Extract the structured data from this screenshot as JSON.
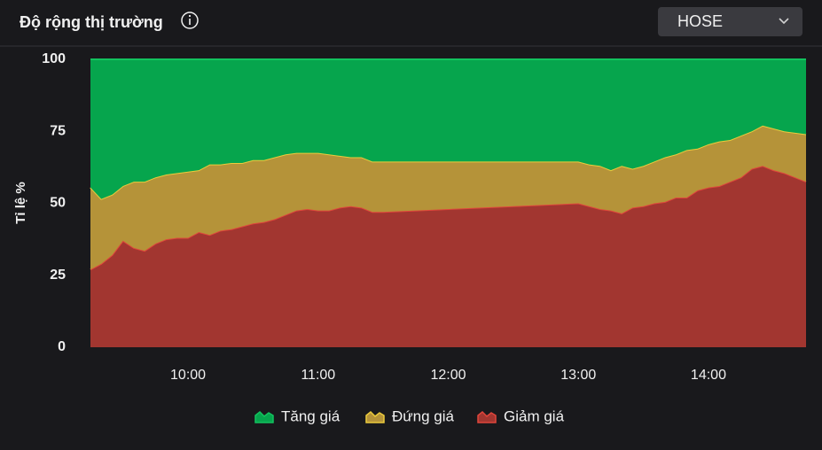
{
  "selector": {
    "value": "HOSE"
  },
  "chart_data": {
    "type": "stacked-area",
    "title": "Độ rộng thị trường",
    "ylabel": "Tỉ lệ %",
    "x": [
      "09:15",
      "09:20",
      "09:25",
      "09:30",
      "09:35",
      "09:40",
      "09:45",
      "09:50",
      "09:55",
      "10:00",
      "10:05",
      "10:10",
      "10:15",
      "10:20",
      "10:25",
      "10:30",
      "10:35",
      "10:40",
      "10:45",
      "10:50",
      "10:55",
      "11:00",
      "11:05",
      "11:10",
      "11:15",
      "11:20",
      "11:25",
      "11:30",
      "13:00",
      "13:05",
      "13:10",
      "13:15",
      "13:20",
      "13:25",
      "13:30",
      "13:35",
      "13:40",
      "13:45",
      "13:50",
      "13:55",
      "14:00",
      "14:05",
      "14:10",
      "14:15",
      "14:20",
      "14:25",
      "14:30",
      "14:35",
      "14:40",
      "14:45"
    ],
    "xlim": [
      "09:15",
      "14:45"
    ],
    "xticks": [
      "10:00",
      "11:00",
      "12:00",
      "13:00",
      "14:00"
    ],
    "ylim": [
      0,
      100
    ],
    "yticks": [
      0,
      25,
      50,
      75,
      100
    ],
    "grid": false,
    "series": [
      {
        "name": "Tăng giá",
        "color": "#06a54d",
        "line_color": "#12c35e",
        "values": [
          44.5,
          48.5,
          47,
          44,
          42.5,
          42.5,
          41,
          40,
          39.5,
          39,
          38.5,
          36.5,
          36.5,
          36,
          36,
          35,
          35,
          34,
          33,
          32.5,
          32.5,
          32.5,
          33,
          33.5,
          34,
          34,
          35.5,
          35.5,
          35.5,
          36.5,
          37,
          38.5,
          37,
          38,
          37,
          35.5,
          34,
          33,
          31.5,
          31,
          29.5,
          28.5,
          28,
          26.5,
          25,
          23,
          24,
          25,
          25.5,
          26
        ]
      },
      {
        "name": "Đứng giá",
        "color": "#b59339",
        "line_color": "#eccb3c",
        "values": [
          28.5,
          22.5,
          21,
          19,
          23,
          24,
          23,
          22.5,
          22.5,
          23,
          21.5,
          24.5,
          23,
          23,
          22,
          22,
          21.5,
          21.5,
          21,
          20,
          19.5,
          20,
          19.5,
          18,
          17,
          17.5,
          17.5,
          17.5,
          14.5,
          14.5,
          15,
          14,
          16.5,
          13.5,
          14,
          14.5,
          15.5,
          15,
          16.5,
          14.5,
          15,
          15.5,
          14.5,
          14.5,
          13,
          14,
          14.5,
          14.5,
          15.5,
          16.5
        ]
      },
      {
        "name": "Giảm giá",
        "color": "#a23630",
        "line_color": "#e0453b",
        "values": [
          27,
          29,
          32,
          37,
          34.5,
          33.5,
          36,
          37.5,
          38,
          38,
          40,
          39,
          40.5,
          41,
          42,
          43,
          43.5,
          44.5,
          46,
          47.5,
          48,
          47.5,
          47.5,
          48.5,
          49,
          48.5,
          47,
          47,
          50,
          49,
          48,
          47.5,
          46.5,
          48.5,
          49,
          50,
          50.5,
          52,
          52,
          54.5,
          55.5,
          56,
          57.5,
          59,
          62,
          63,
          61.5,
          60.5,
          59,
          57.5
        ]
      }
    ]
  }
}
